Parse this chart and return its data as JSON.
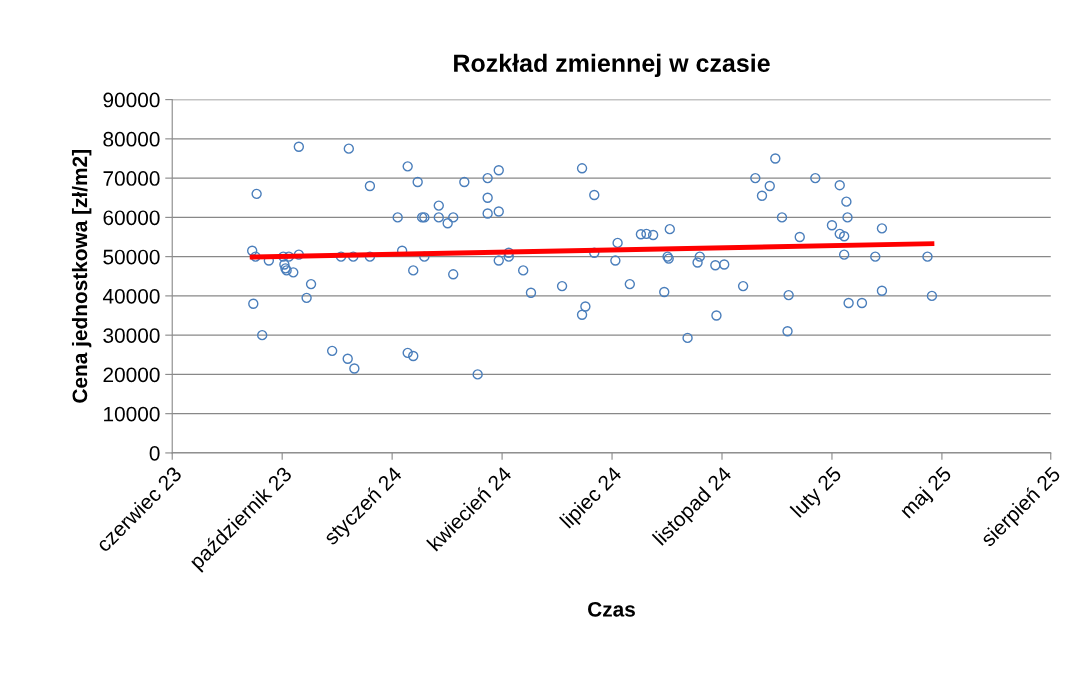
{
  "chart_data": {
    "type": "scatter",
    "title": "Rozkład zmiennej w czasie",
    "xlabel": "Czas",
    "ylabel": "Cena jednostkowa [zł/m2]",
    "grid": "y",
    "marker": "circle",
    "legend": false,
    "xlim": [
      "2023-06-25",
      "2025-08-24"
    ],
    "xticks": [
      {
        "value": "2023-06-25",
        "label": "czerwiec 23"
      },
      {
        "value": "2023-10-02",
        "label": "październik 23"
      },
      {
        "value": "2024-01-09",
        "label": "styczeń 24"
      },
      {
        "value": "2024-04-17",
        "label": "kwiecień 24"
      },
      {
        "value": "2024-07-25",
        "label": "lipiec 24"
      },
      {
        "value": "2024-11-01",
        "label": "listopad 24"
      },
      {
        "value": "2025-02-08",
        "label": "luty 25"
      },
      {
        "value": "2025-05-18",
        "label": "maj 25"
      },
      {
        "value": "2025-08-24",
        "label": "sierpień 25"
      }
    ],
    "ylim": [
      0,
      90000
    ],
    "yticks": [
      0,
      10000,
      20000,
      30000,
      40000,
      50000,
      60000,
      70000,
      80000,
      90000
    ],
    "series": [
      {
        "color": "#4a7ebb",
        "x": [
          "2023-09-05",
          "2023-09-08",
          "2023-09-09",
          "2023-09-06",
          "2023-09-14",
          "2023-09-20",
          "2023-10-03",
          "2023-10-04",
          "2023-10-05",
          "2023-10-06",
          "2023-10-08",
          "2023-10-12",
          "2023-10-17",
          "2023-10-17",
          "2023-10-24",
          "2023-10-28",
          "2023-11-16",
          "2023-11-24",
          "2023-11-30",
          "2023-12-01",
          "2023-12-05",
          "2023-12-06",
          "2023-12-20",
          "2023-12-20",
          "2024-01-14",
          "2024-01-18",
          "2024-01-23",
          "2024-01-23",
          "2024-01-28",
          "2024-01-28",
          "2024-02-01",
          "2024-02-05",
          "2024-02-07",
          "2024-02-07",
          "2024-02-20",
          "2024-02-20",
          "2024-02-28",
          "2024-03-04",
          "2024-03-04",
          "2024-03-14",
          "2024-03-26",
          "2024-04-04",
          "2024-04-04",
          "2024-04-04",
          "2024-04-14",
          "2024-04-14",
          "2024-04-14",
          "2024-04-23",
          "2024-04-23",
          "2024-05-06",
          "2024-05-13",
          "2024-06-10",
          "2024-06-28",
          "2024-06-28",
          "2024-07-01",
          "2024-07-09",
          "2024-07-09",
          "2024-07-28",
          "2024-07-30",
          "2024-08-10",
          "2024-08-20",
          "2024-08-25",
          "2024-08-31",
          "2024-09-10",
          "2024-09-13",
          "2024-09-14",
          "2024-09-15",
          "2024-10-01",
          "2024-10-10",
          "2024-10-12",
          "2024-10-26",
          "2024-10-27",
          "2024-11-03",
          "2024-11-20",
          "2024-12-01",
          "2024-12-07",
          "2024-12-14",
          "2024-12-19",
          "2024-12-25",
          "2024-12-30",
          "2024-12-31",
          "2025-01-10",
          "2025-01-24",
          "2025-02-08",
          "2025-02-15",
          "2025-02-15",
          "2025-02-19",
          "2025-02-19",
          "2025-02-21",
          "2025-02-22",
          "2025-02-23",
          "2025-03-07",
          "2025-03-19",
          "2025-03-25",
          "2025-03-25",
          "2025-05-05",
          "2025-05-09"
        ],
        "values": [
          51500,
          50000,
          66000,
          38000,
          30000,
          49000,
          50000,
          48000,
          47000,
          46500,
          50000,
          46000,
          50500,
          78000,
          39500,
          43000,
          26000,
          50000,
          24000,
          77500,
          50000,
          21500,
          68000,
          50000,
          60000,
          51500,
          73000,
          25500,
          46500,
          24700,
          69000,
          60000,
          60000,
          50000,
          63000,
          60000,
          58500,
          60000,
          45500,
          69000,
          20000,
          70000,
          65000,
          61000,
          72000,
          61500,
          49000,
          51000,
          50000,
          46500,
          40800,
          42500,
          72500,
          35200,
          37300,
          65700,
          51000,
          49000,
          53500,
          43000,
          55700,
          55800,
          55500,
          41000,
          50000,
          49500,
          57000,
          29300,
          48500,
          50000,
          47800,
          35000,
          48000,
          42500,
          70000,
          65500,
          68000,
          75000,
          60000,
          31000,
          40200,
          55000,
          70000,
          58000,
          68200,
          55800,
          55200,
          50500,
          64000,
          60000,
          38200,
          38200,
          50000,
          57200,
          41300,
          50000,
          40000
        ]
      },
      {
        "type": "line",
        "color": "#ff0000",
        "marker": "none",
        "line_style": "solid",
        "x": [
          "2023-09-05",
          "2025-05-09"
        ],
        "values": [
          49900,
          53300
        ]
      }
    ]
  }
}
